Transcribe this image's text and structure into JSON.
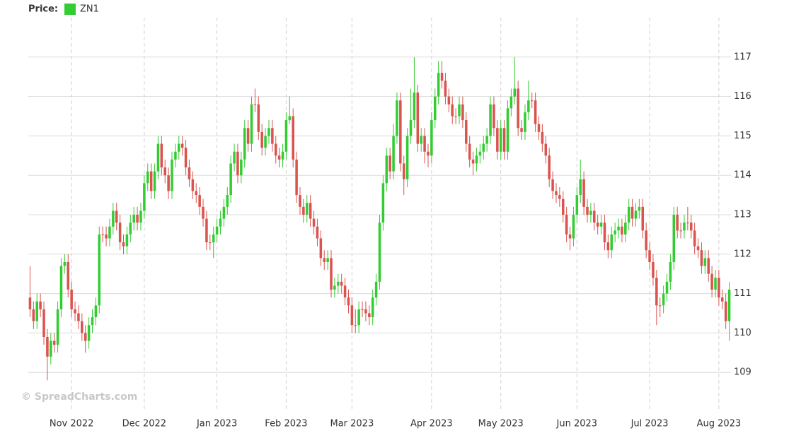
{
  "chart_data": {
    "type": "candlestick",
    "legend_label": "Price:",
    "watermark": "© SpreadCharts.com",
    "down_color": "#d9534f",
    "ylim": [
      108,
      118
    ],
    "yticks": [
      109,
      110,
      111,
      112,
      113,
      114,
      115,
      116,
      117
    ],
    "grid": true,
    "y_axis_side": "right",
    "categories": [
      null,
      null,
      null,
      null,
      null,
      null,
      null,
      null,
      null,
      null,
      null,
      null,
      "Nov 2022",
      null,
      null,
      null,
      null,
      null,
      null,
      null,
      null,
      null,
      null,
      null,
      null,
      null,
      null,
      null,
      null,
      null,
      null,
      null,
      null,
      "Dec 2022",
      null,
      null,
      null,
      null,
      null,
      null,
      null,
      null,
      null,
      null,
      null,
      null,
      null,
      null,
      null,
      null,
      null,
      null,
      null,
      null,
      "Jan 2023",
      null,
      null,
      null,
      null,
      null,
      null,
      null,
      null,
      null,
      null,
      null,
      null,
      null,
      null,
      null,
      null,
      null,
      null,
      null,
      "Feb 2023",
      null,
      null,
      null,
      null,
      null,
      null,
      null,
      null,
      null,
      null,
      null,
      null,
      null,
      null,
      null,
      null,
      null,
      null,
      "Mar 2023",
      null,
      null,
      null,
      null,
      null,
      null,
      null,
      null,
      null,
      null,
      null,
      null,
      null,
      null,
      null,
      null,
      null,
      null,
      null,
      null,
      null,
      null,
      "Apr 2023",
      null,
      null,
      null,
      null,
      null,
      null,
      null,
      null,
      null,
      null,
      null,
      null,
      null,
      null,
      null,
      null,
      null,
      null,
      null,
      "May 2023",
      null,
      null,
      null,
      null,
      null,
      null,
      null,
      null,
      null,
      null,
      null,
      null,
      null,
      null,
      null,
      null,
      null,
      null,
      null,
      null,
      null,
      "Jun 2023",
      null,
      null,
      null,
      null,
      null,
      null,
      null,
      null,
      null,
      null,
      null,
      null,
      null,
      null,
      null,
      null,
      null,
      null,
      null,
      null,
      "Jul 2023",
      null,
      null,
      null,
      null,
      null,
      null,
      null,
      null,
      null,
      null,
      null,
      null,
      null,
      null,
      null,
      null,
      null,
      null,
      null,
      "Aug 2023",
      null,
      null,
      null
    ],
    "series": [
      {
        "name": "ZN1",
        "color": "#33cc33",
        "open": [
          110.9,
          110.6,
          110.3,
          110.8,
          110.6,
          109.9,
          109.4,
          109.8,
          109.7,
          110.6,
          111.7,
          111.8,
          111.1,
          110.6,
          110.5,
          110.3,
          110.0,
          109.8,
          110.2,
          110.4,
          110.7,
          112.5,
          112.5,
          112.4,
          112.7,
          113.1,
          112.8,
          112.3,
          112.2,
          112.5,
          112.8,
          113.0,
          112.8,
          113.1,
          113.8,
          114.1,
          113.6,
          114.1,
          114.8,
          114.2,
          114.0,
          113.6,
          114.4,
          114.6,
          114.8,
          114.7,
          114.2,
          113.9,
          113.6,
          113.5,
          113.2,
          112.9,
          112.3,
          112.3,
          112.5,
          112.7,
          112.9,
          113.2,
          113.5,
          114.3,
          114.6,
          114.0,
          114.4,
          115.2,
          114.8,
          115.8,
          115.8,
          115.1,
          114.7,
          115.0,
          115.2,
          114.8,
          114.5,
          114.4,
          114.6,
          115.4,
          115.5,
          114.4,
          113.5,
          113.2,
          113.0,
          113.3,
          112.9,
          112.7,
          112.4,
          111.9,
          111.8,
          111.9,
          111.1,
          111.2,
          111.3,
          111.2,
          110.9,
          110.7,
          110.2,
          110.2,
          110.6,
          110.6,
          110.5,
          110.4,
          110.9,
          111.3,
          112.8,
          113.8,
          114.5,
          114.1,
          115.0,
          115.9,
          114.3,
          113.9,
          115.0,
          115.4,
          116.1,
          114.8,
          115.0,
          114.6,
          114.5,
          115.4,
          116.0,
          116.6,
          116.4,
          116.0,
          115.8,
          115.5,
          115.5,
          115.8,
          115.4,
          114.8,
          114.4,
          114.3,
          114.5,
          114.6,
          114.8,
          115.0,
          115.8,
          115.2,
          114.6,
          115.2,
          114.6,
          115.7,
          116.0,
          116.2,
          115.2,
          115.1,
          115.6,
          115.9,
          115.9,
          115.3,
          115.1,
          114.8,
          114.5,
          113.9,
          113.6,
          113.5,
          113.4,
          113.0,
          112.5,
          112.4,
          113.0,
          113.5,
          113.9,
          113.2,
          113.0,
          113.1,
          112.8,
          112.7,
          112.8,
          112.3,
          112.1,
          112.5,
          112.6,
          112.7,
          112.5,
          112.8,
          113.2,
          112.9,
          113.1,
          113.2,
          112.6,
          112.1,
          111.8,
          111.4,
          110.7,
          110.7,
          111.0,
          111.3,
          111.8,
          113.0,
          112.6,
          112.6,
          112.8,
          112.8,
          112.6,
          112.2,
          112.1,
          111.7,
          111.9,
          111.5,
          111.1,
          111.4,
          110.9,
          110.8,
          110.3
        ],
        "high": [
          111.7,
          110.8,
          111.0,
          111.0,
          110.8,
          110.1,
          110.0,
          110.0,
          110.8,
          111.9,
          112.0,
          112.0,
          111.3,
          110.8,
          110.7,
          110.5,
          110.2,
          110.4,
          110.6,
          110.9,
          112.7,
          112.7,
          112.7,
          112.9,
          113.3,
          113.3,
          113.0,
          112.5,
          112.7,
          113.0,
          113.2,
          113.2,
          113.3,
          114.0,
          114.3,
          114.3,
          114.3,
          115.0,
          115.0,
          114.4,
          114.2,
          114.6,
          114.8,
          115.0,
          115.0,
          114.9,
          114.4,
          114.1,
          113.8,
          113.7,
          113.4,
          113.1,
          112.5,
          112.7,
          112.9,
          113.1,
          113.4,
          113.7,
          114.5,
          114.8,
          114.8,
          114.6,
          115.4,
          115.4,
          116.0,
          116.2,
          116.0,
          115.3,
          115.2,
          115.4,
          115.4,
          115.0,
          114.7,
          114.8,
          115.6,
          116.0,
          115.7,
          114.6,
          113.7,
          113.4,
          113.5,
          113.5,
          113.1,
          112.9,
          112.6,
          112.1,
          112.1,
          112.1,
          111.4,
          111.5,
          111.5,
          111.4,
          111.1,
          110.9,
          110.6,
          110.8,
          110.8,
          110.8,
          110.7,
          111.1,
          111.5,
          113.0,
          114.0,
          114.7,
          114.7,
          115.3,
          116.1,
          116.1,
          114.5,
          115.2,
          116.2,
          117.0,
          116.3,
          115.2,
          115.2,
          114.8,
          115.6,
          116.2,
          116.9,
          116.9,
          116.6,
          116.2,
          116.0,
          115.7,
          116.0,
          116.0,
          115.6,
          115.0,
          114.6,
          114.7,
          114.8,
          115.0,
          115.2,
          116.0,
          116.0,
          115.4,
          115.4,
          115.4,
          115.9,
          116.2,
          117.0,
          116.4,
          115.4,
          115.8,
          116.4,
          116.1,
          116.1,
          115.5,
          115.3,
          115.0,
          114.7,
          114.1,
          113.8,
          113.7,
          113.6,
          113.2,
          112.7,
          113.2,
          113.7,
          114.4,
          114.1,
          113.4,
          113.3,
          113.3,
          113.0,
          113.0,
          113.0,
          112.5,
          112.7,
          112.8,
          112.9,
          112.9,
          113.0,
          113.4,
          113.4,
          113.3,
          113.4,
          113.4,
          112.8,
          112.3,
          112.0,
          111.6,
          110.9,
          111.2,
          111.5,
          112.0,
          113.2,
          113.2,
          112.8,
          113.0,
          113.2,
          113.0,
          112.8,
          112.4,
          112.3,
          112.1,
          112.1,
          111.7,
          111.6,
          111.6,
          111.1,
          111.0,
          111.3
        ],
        "low": [
          110.4,
          110.1,
          110.1,
          110.4,
          109.7,
          108.8,
          109.2,
          109.5,
          109.5,
          110.4,
          111.5,
          110.9,
          110.4,
          110.3,
          110.1,
          109.8,
          109.5,
          109.6,
          110.0,
          110.2,
          110.5,
          112.3,
          112.2,
          112.2,
          112.5,
          112.6,
          112.1,
          112.0,
          112.0,
          112.3,
          112.6,
          112.6,
          112.6,
          112.9,
          113.6,
          113.4,
          113.4,
          113.9,
          114.0,
          113.8,
          113.4,
          113.4,
          114.2,
          114.4,
          114.5,
          114.0,
          113.7,
          113.4,
          113.3,
          113.0,
          112.7,
          112.1,
          112.1,
          111.9,
          112.3,
          112.5,
          112.7,
          113.0,
          113.3,
          114.1,
          113.8,
          113.8,
          114.2,
          114.6,
          114.6,
          115.6,
          114.9,
          114.5,
          114.5,
          114.8,
          114.6,
          114.3,
          114.2,
          114.2,
          114.4,
          115.3,
          114.2,
          113.3,
          113.0,
          112.8,
          112.8,
          112.7,
          112.5,
          112.2,
          111.7,
          111.6,
          111.6,
          110.9,
          110.9,
          111.0,
          111.0,
          110.7,
          110.5,
          110.0,
          110.0,
          110.0,
          110.4,
          110.3,
          110.2,
          110.2,
          110.7,
          111.1,
          112.6,
          113.6,
          113.9,
          113.9,
          114.8,
          114.1,
          113.5,
          113.7,
          114.8,
          115.2,
          114.6,
          114.6,
          114.3,
          114.2,
          114.3,
          115.2,
          115.8,
          116.2,
          115.8,
          115.6,
          115.3,
          115.3,
          115.3,
          115.2,
          114.6,
          114.2,
          114.0,
          114.1,
          114.3,
          114.4,
          114.6,
          114.8,
          115.0,
          114.4,
          114.4,
          114.4,
          114.4,
          115.5,
          115.8,
          115.0,
          114.9,
          114.9,
          115.4,
          115.7,
          115.1,
          114.9,
          114.6,
          114.3,
          113.7,
          113.4,
          113.3,
          113.2,
          112.8,
          112.3,
          112.1,
          112.2,
          112.8,
          113.3,
          113.0,
          112.8,
          112.8,
          112.6,
          112.5,
          112.5,
          112.1,
          111.9,
          111.9,
          112.3,
          112.4,
          112.3,
          112.3,
          112.6,
          112.7,
          112.7,
          112.9,
          112.4,
          111.9,
          111.6,
          111.2,
          110.2,
          110.4,
          110.5,
          110.8,
          111.1,
          111.6,
          112.4,
          112.4,
          112.4,
          112.6,
          112.4,
          112.0,
          111.9,
          111.5,
          111.5,
          111.3,
          110.9,
          110.9,
          110.7,
          110.6,
          110.1,
          109.8
        ],
        "close": [
          110.6,
          110.3,
          110.8,
          110.6,
          109.9,
          109.4,
          109.8,
          109.7,
          110.6,
          111.7,
          111.8,
          111.1,
          110.6,
          110.5,
          110.3,
          110.0,
          109.8,
          110.2,
          110.4,
          110.7,
          112.5,
          112.5,
          112.4,
          112.7,
          113.1,
          112.8,
          112.3,
          112.2,
          112.5,
          112.8,
          113.0,
          112.8,
          113.1,
          113.8,
          114.1,
          113.6,
          114.1,
          114.8,
          114.2,
          114.0,
          113.6,
          114.4,
          114.6,
          114.8,
          114.7,
          114.2,
          113.9,
          113.6,
          113.5,
          113.2,
          112.9,
          112.3,
          112.3,
          112.5,
          112.7,
          112.9,
          113.2,
          113.5,
          114.3,
          114.6,
          114.0,
          114.4,
          115.2,
          114.8,
          115.8,
          115.8,
          115.1,
          114.7,
          115.0,
          115.2,
          114.8,
          114.5,
          114.4,
          114.6,
          115.4,
          115.5,
          114.4,
          113.5,
          113.2,
          113.0,
          113.3,
          112.9,
          112.7,
          112.4,
          111.9,
          111.8,
          111.9,
          111.1,
          111.2,
          111.3,
          111.2,
          110.9,
          110.7,
          110.2,
          110.2,
          110.6,
          110.6,
          110.5,
          110.4,
          110.9,
          111.3,
          112.8,
          113.8,
          114.5,
          114.1,
          115.0,
          115.9,
          114.3,
          113.9,
          115.0,
          115.4,
          116.1,
          114.8,
          115.0,
          114.6,
          114.5,
          115.4,
          116.0,
          116.6,
          116.4,
          116.0,
          115.8,
          115.5,
          115.5,
          115.8,
          115.4,
          114.8,
          114.4,
          114.3,
          114.5,
          114.6,
          114.8,
          115.0,
          115.8,
          115.2,
          114.6,
          115.2,
          114.6,
          115.7,
          116.0,
          116.2,
          115.2,
          115.1,
          115.6,
          115.9,
          115.9,
          115.3,
          115.1,
          114.8,
          114.5,
          113.9,
          113.6,
          113.5,
          113.4,
          113.0,
          112.5,
          112.4,
          113.0,
          113.5,
          113.9,
          113.2,
          113.0,
          113.1,
          112.8,
          112.7,
          112.8,
          112.3,
          112.1,
          112.5,
          112.6,
          112.7,
          112.5,
          112.8,
          113.2,
          112.9,
          113.1,
          113.2,
          112.6,
          112.1,
          111.8,
          111.4,
          110.7,
          110.7,
          111.0,
          111.3,
          111.8,
          113.0,
          112.6,
          112.6,
          112.8,
          112.8,
          112.6,
          112.2,
          112.1,
          111.7,
          111.9,
          111.5,
          111.1,
          111.4,
          110.9,
          110.8,
          110.3,
          111.1
        ]
      }
    ]
  }
}
